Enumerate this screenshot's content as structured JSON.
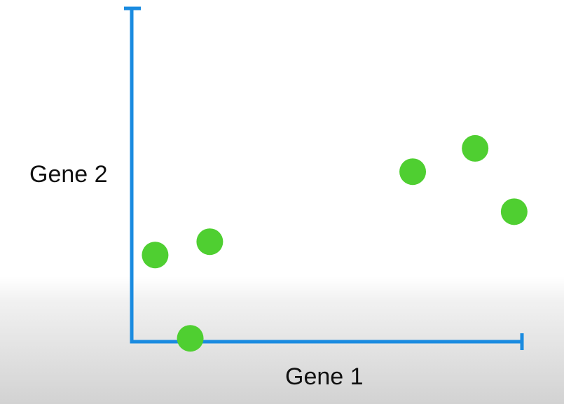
{
  "chart_data": {
    "type": "scatter",
    "title": "",
    "xlabel": "Gene 1",
    "ylabel": "Gene 2",
    "xlim": [
      0,
      10
    ],
    "ylim": [
      0,
      10
    ],
    "grid": false,
    "axis_color": "#1a8be0",
    "point_color": "#4fcf31",
    "series": [
      {
        "x": [
          0.6,
          1.5,
          2.0,
          7.2,
          8.8,
          9.8
        ],
        "y": [
          2.6,
          0.1,
          3.0,
          5.1,
          5.8,
          3.9
        ]
      }
    ]
  }
}
